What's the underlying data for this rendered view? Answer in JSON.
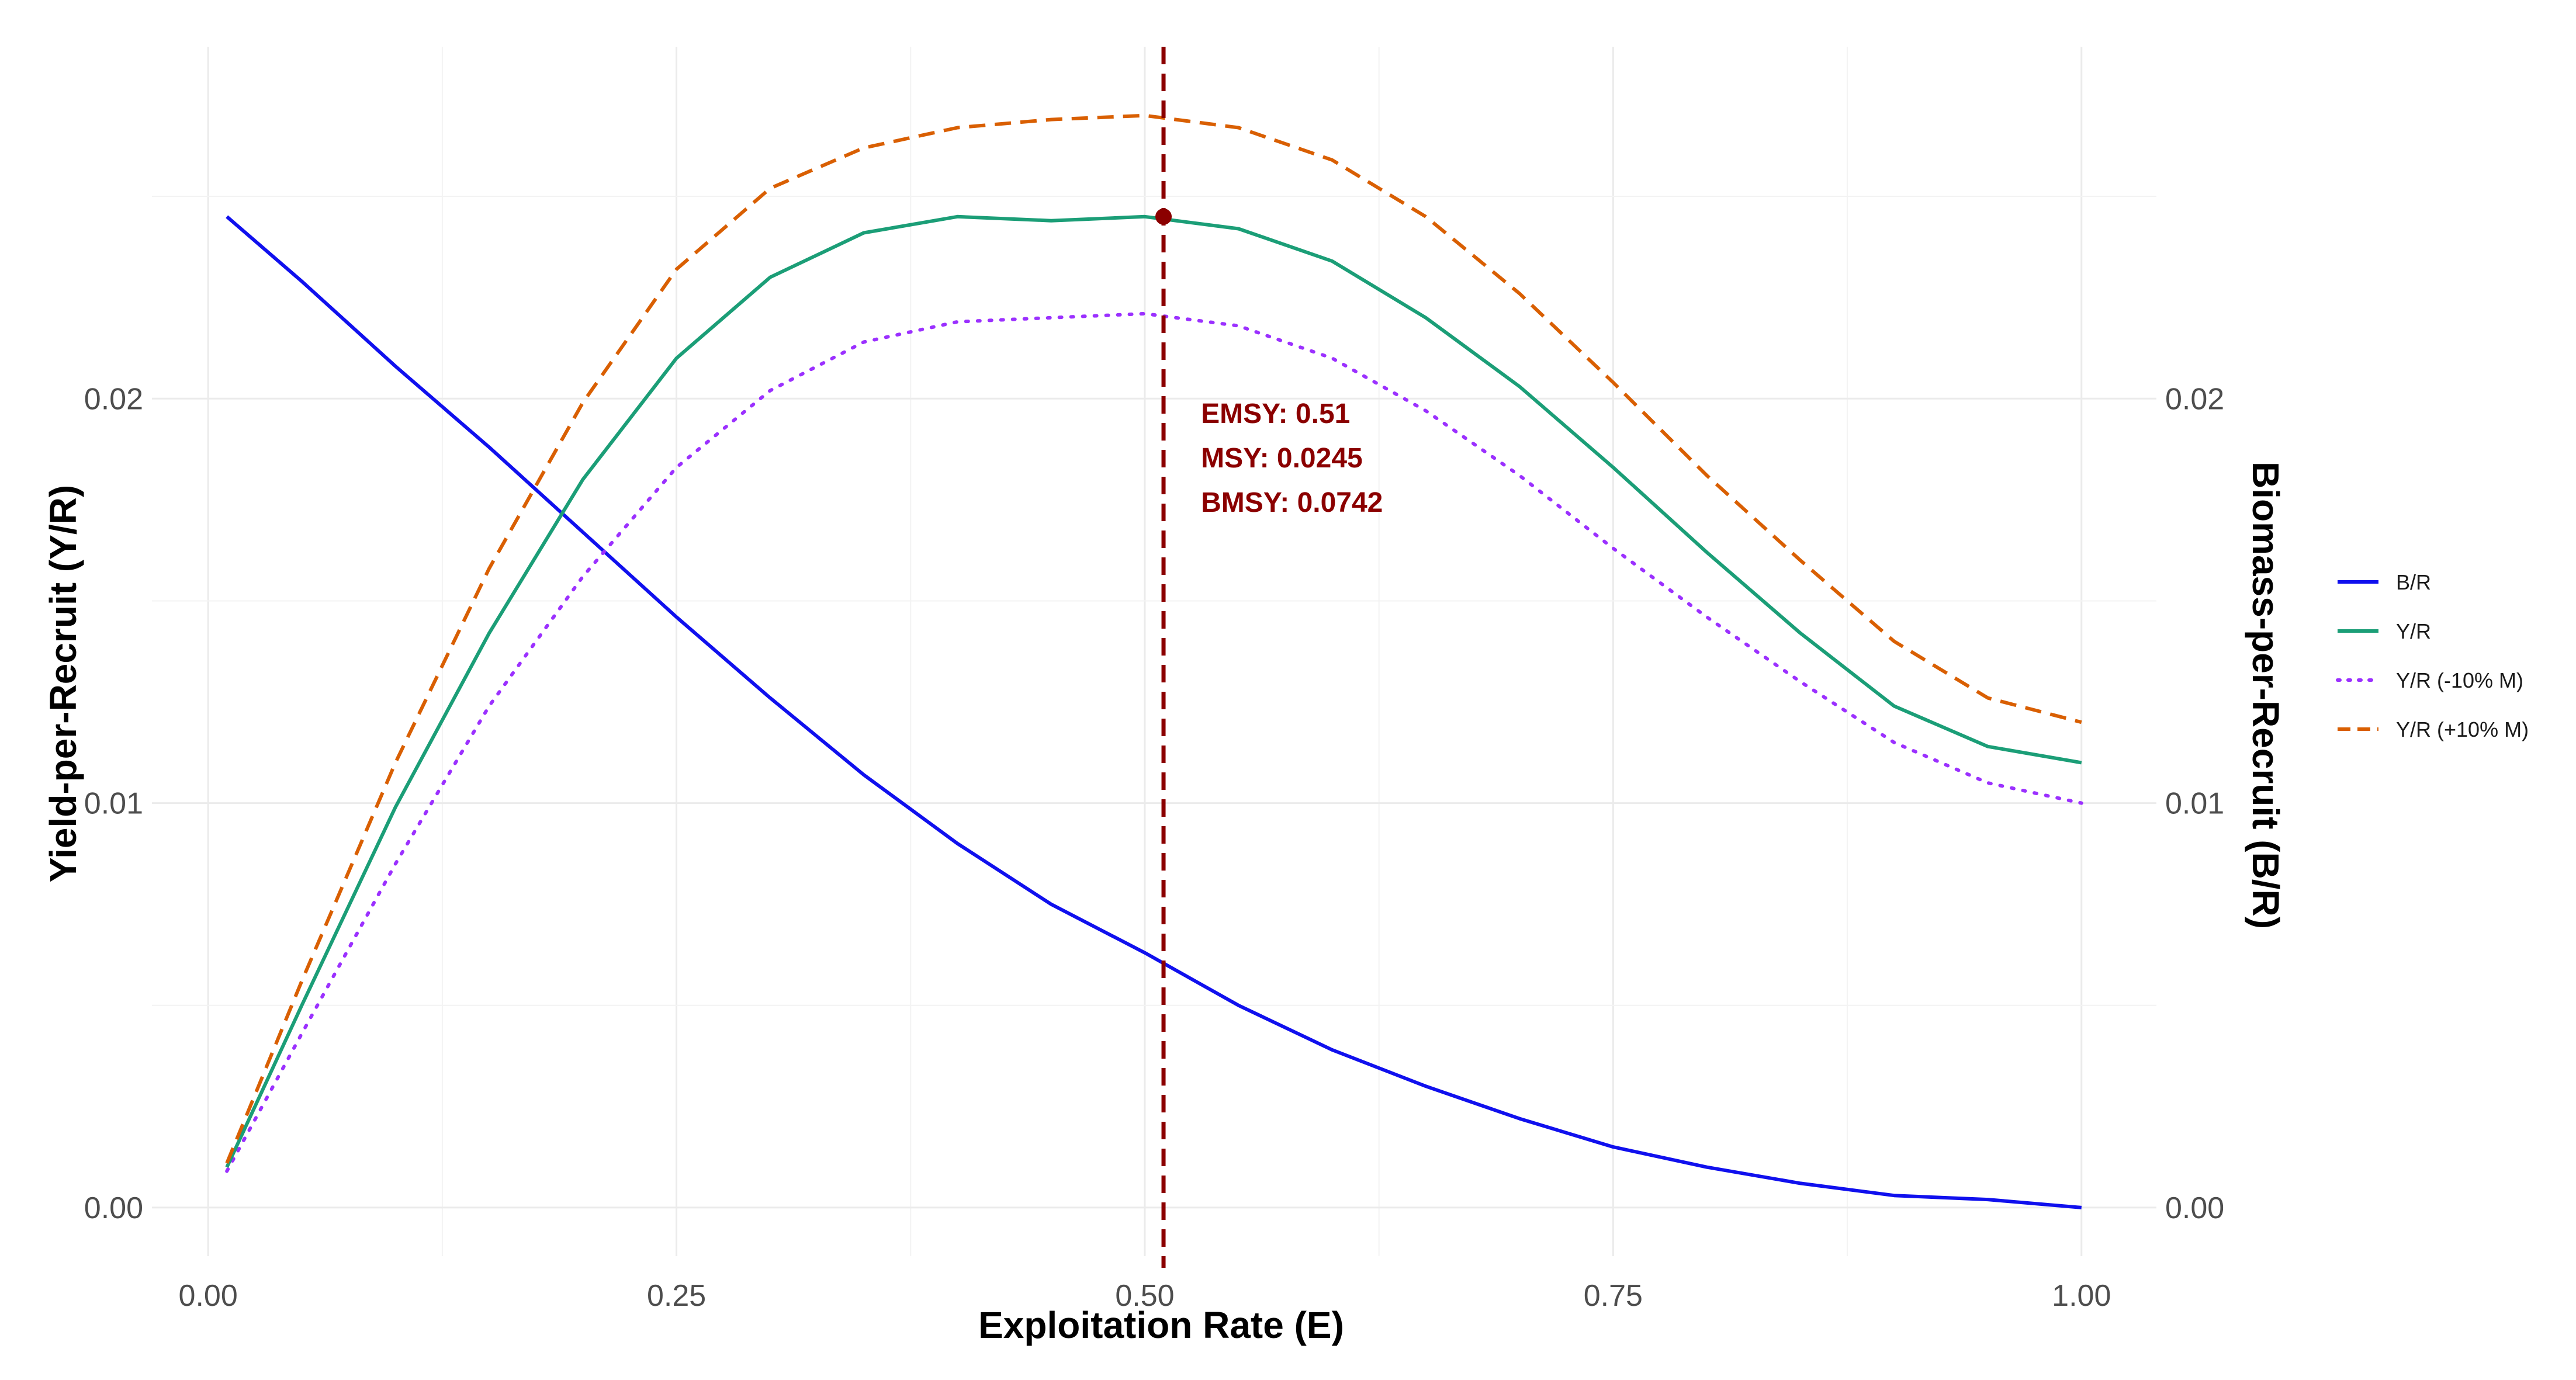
{
  "chart_data": {
    "type": "line",
    "title": "",
    "xlabel": "Exploitation Rate (E)",
    "ylabel": "Yield-per-Recruit (Y/R)",
    "y2label": "Biomass-per-Recruit (B/R)",
    "xlim": [
      -0.03,
      1.04
    ],
    "ylim": [
      -0.0012,
      0.0287
    ],
    "xticks": [
      0.0,
      0.25,
      0.5,
      0.75,
      1.0
    ],
    "xtick_labels": [
      "0.00",
      "0.25",
      "0.50",
      "0.75",
      "1.00"
    ],
    "yticks": [
      0.0,
      0.01,
      0.02
    ],
    "ytick_labels": [
      "0.00",
      "0.01",
      "0.02"
    ],
    "y2tick_labels": [
      "0.00",
      "0.01",
      "0.02"
    ],
    "grid": true,
    "legend_position": "right",
    "x": [
      0.01,
      0.05,
      0.1,
      0.15,
      0.2,
      0.25,
      0.3,
      0.35,
      0.4,
      0.45,
      0.5,
      0.55,
      0.6,
      0.65,
      0.7,
      0.75,
      0.8,
      0.85,
      0.9,
      0.95,
      1.0
    ],
    "series": [
      {
        "name": "B/R",
        "color": "#1010ee",
        "dash": "solid",
        "values": [
          0.0245,
          0.0229,
          0.0208,
          0.0188,
          0.0167,
          0.0146,
          0.0126,
          0.0107,
          0.009,
          0.0075,
          0.0063,
          0.005,
          0.0039,
          0.003,
          0.0022,
          0.0015,
          0.001,
          0.0006,
          0.0003,
          0.0002,
          0.0
        ]
      },
      {
        "name": "Y/R",
        "color": "#1b9e77",
        "dash": "solid",
        "values": [
          0.001,
          0.005,
          0.0099,
          0.0142,
          0.018,
          0.021,
          0.023,
          0.0241,
          0.0245,
          0.0244,
          0.0245,
          0.0242,
          0.0234,
          0.022,
          0.0203,
          0.0183,
          0.0162,
          0.0142,
          0.0124,
          0.0114,
          0.011
        ]
      },
      {
        "name": "Y/R (-10% M)",
        "color": "#9b30ff",
        "dash": "dotted",
        "values": [
          0.0009,
          0.0043,
          0.0085,
          0.0124,
          0.0156,
          0.0183,
          0.0202,
          0.0214,
          0.0219,
          0.022,
          0.0221,
          0.0218,
          0.021,
          0.0197,
          0.0181,
          0.0163,
          0.0146,
          0.013,
          0.0115,
          0.0105,
          0.01
        ]
      },
      {
        "name": "Y/R (+10% M)",
        "color": "#d95f02",
        "dash": "dashed",
        "values": [
          0.0011,
          0.0056,
          0.011,
          0.0158,
          0.0199,
          0.0232,
          0.0252,
          0.0262,
          0.0267,
          0.0269,
          0.027,
          0.0267,
          0.0259,
          0.0245,
          0.0226,
          0.0204,
          0.0181,
          0.016,
          0.014,
          0.0126,
          0.012
        ]
      }
    ],
    "reference_line": {
      "x": 0.51,
      "color": "#8b0000",
      "dash": "dashed"
    },
    "point": {
      "x": 0.51,
      "y": 0.0245,
      "color": "#8b0000"
    },
    "annotation": {
      "lines": [
        "EMSY: 0.51",
        "MSY: 0.0245",
        "BMSY: 0.0742"
      ],
      "color": "#8b0000",
      "x": 0.53,
      "y": 0.0194
    }
  }
}
